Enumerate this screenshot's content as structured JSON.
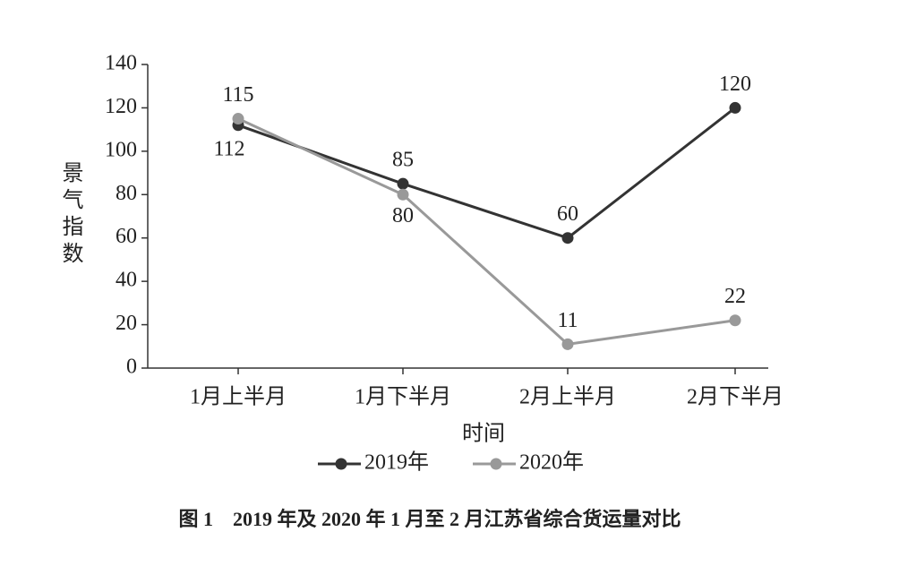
{
  "chart_data": {
    "type": "line",
    "ylabel": "景气指数",
    "xlabel": "时间",
    "categories": [
      "1月上半月",
      "1月下半月",
      "2月上半月",
      "2月下半月"
    ],
    "series": [
      {
        "name": "2019年",
        "color": "#333333",
        "values": [
          112,
          85,
          60,
          120
        ]
      },
      {
        "name": "2020年",
        "color": "#999999",
        "values": [
          115,
          80,
          11,
          22
        ]
      }
    ],
    "ylim": [
      0,
      140
    ],
    "yticks": [
      0,
      20,
      40,
      60,
      80,
      100,
      120,
      140
    ],
    "legend": "bottom",
    "caption": "图 1　2019 年及 2020 年 1 月至 2 月江苏省综合货运量对比"
  }
}
